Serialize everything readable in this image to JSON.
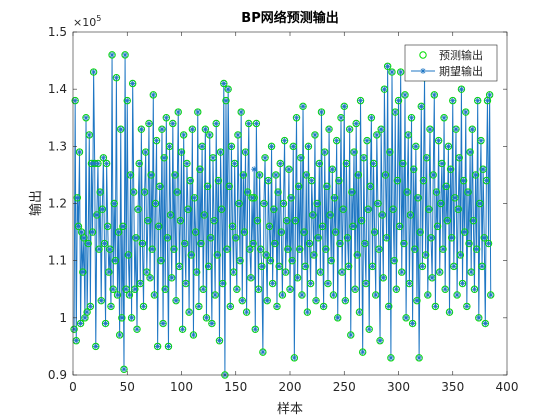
{
  "chart_data": {
    "type": "line",
    "title": "BP网络预测输出",
    "x_label": "样本",
    "y_label": "输出",
    "y_scale": {
      "base": "×10",
      "exponent": "5"
    },
    "xlim": [
      0,
      400
    ],
    "xticks": [
      0,
      50,
      100,
      150,
      200,
      250,
      300,
      350,
      400
    ],
    "ylim": [
      0.9,
      1.5
    ],
    "yticks": [
      0.9,
      1,
      1.1,
      1.2,
      1.3,
      1.4,
      1.5
    ],
    "legend": "upper right",
    "grid": false,
    "x": [
      1,
      2,
      3,
      4,
      5,
      6,
      7,
      8,
      9,
      10,
      11,
      12,
      13,
      14,
      15,
      16,
      17,
      18,
      19,
      20,
      21,
      22,
      23,
      24,
      25,
      26,
      27,
      28,
      29,
      30,
      31,
      32,
      33,
      34,
      35,
      36,
      37,
      38,
      39,
      40,
      41,
      42,
      43,
      44,
      45,
      46,
      47,
      48,
      49,
      50,
      51,
      52,
      53,
      54,
      55,
      56,
      57,
      58,
      59,
      60,
      61,
      62,
      63,
      64,
      65,
      66,
      67,
      68,
      69,
      70,
      71,
      72,
      73,
      74,
      75,
      76,
      77,
      78,
      79,
      80,
      81,
      82,
      83,
      84,
      85,
      86,
      87,
      88,
      89,
      90,
      91,
      92,
      93,
      94,
      95,
      96,
      97,
      98,
      99,
      100,
      101,
      102,
      103,
      104,
      105,
      106,
      107,
      108,
      109,
      110,
      111,
      112,
      113,
      114,
      115,
      116,
      117,
      118,
      119,
      120,
      121,
      122,
      123,
      124,
      125,
      126,
      127,
      128,
      129,
      130,
      131,
      132,
      133,
      134,
      135,
      136,
      137,
      138,
      139,
      140,
      141,
      142,
      143,
      144,
      145,
      146,
      147,
      148,
      149,
      150,
      151,
      152,
      153,
      154,
      155,
      156,
      157,
      158,
      159,
      160,
      161,
      162,
      163,
      164,
      165,
      166,
      167,
      168,
      169,
      170,
      171,
      172,
      173,
      174,
      175,
      176,
      177,
      178,
      179,
      180,
      181,
      182,
      183,
      184,
      185,
      186,
      187,
      188,
      189,
      190,
      191,
      192,
      193,
      194,
      195,
      196,
      197,
      198,
      199,
      200,
      201,
      202,
      203,
      204,
      205,
      206,
      207,
      208,
      209,
      210,
      211,
      212,
      213,
      214,
      215,
      216,
      217,
      218,
      219,
      220,
      221,
      222,
      223,
      224,
      225,
      226,
      227,
      228,
      229,
      230,
      231,
      232,
      233,
      234,
      235,
      236,
      237,
      238,
      239,
      240,
      241,
      242,
      243,
      244,
      245,
      246,
      247,
      248,
      249,
      250,
      251,
      252,
      253,
      254,
      255,
      256,
      257,
      258,
      259,
      260,
      261,
      262,
      263,
      264,
      265,
      266,
      267,
      268,
      269,
      270,
      271,
      272,
      273,
      274,
      275,
      276,
      277,
      278,
      279,
      280,
      281,
      282,
      283,
      284,
      285,
      286,
      287,
      288,
      289,
      290,
      291,
      292,
      293,
      294,
      295,
      296,
      297,
      298,
      299,
      300,
      301,
      302,
      303,
      304,
      305,
      306,
      307,
      308,
      309,
      310,
      311,
      312,
      313,
      314,
      315,
      316,
      317,
      318,
      319,
      320,
      321,
      322,
      323,
      324,
      325,
      326,
      327,
      328,
      329,
      330,
      331,
      332,
      333,
      334,
      335,
      336,
      337,
      338,
      339,
      340,
      341,
      342,
      343,
      344,
      345,
      346,
      347,
      348,
      349,
      350,
      351,
      352,
      353,
      354,
      355,
      356,
      357,
      358,
      359,
      360,
      361,
      362,
      363,
      364,
      365,
      366,
      367,
      368,
      369,
      370,
      371,
      372,
      373,
      374,
      375,
      376,
      377,
      378,
      379,
      380,
      381,
      382,
      383,
      384,
      385
    ],
    "series": [
      {
        "name": "预测输出",
        "color": "#00dd00",
        "marker": "circle",
        "line": false,
        "values": [
          0.98,
          1.38,
          0.96,
          1.21,
          1.16,
          1.29,
          0.99,
          1.15,
          1.08,
          1.14,
          1.0,
          1.35,
          1.01,
          1.13,
          1.32,
          1.02,
          1.27,
          1.15,
          1.43,
          1.27,
          0.95,
          1.18,
          1.27,
          1.12,
          1.22,
          1.03,
          1.19,
          1.28,
          1.13,
          0.99,
          1.27,
          1.16,
          1.08,
          1.12,
          1.02,
          1.46,
          1.05,
          1.2,
          1.1,
          1.42,
          1.04,
          1.15,
          0.97,
          1.33,
          1.0,
          1.16,
          0.91,
          1.46,
          1.05,
          1.38,
          1.11,
          1.04,
          1.25,
          1.0,
          1.41,
          1.22,
          1.05,
          1.14,
          0.98,
          1.19,
          1.27,
          1.06,
          1.33,
          1.13,
          1.02,
          1.22,
          1.29,
          1.08,
          1.17,
          1.34,
          1.07,
          1.25,
          1.12,
          1.39,
          1.04,
          1.2,
          1.31,
          0.95,
          1.16,
          1.23,
          1.1,
          1.33,
          0.99,
          1.28,
          1.05,
          1.35,
          1.14,
          0.95,
          1.3,
          1.18,
          1.07,
          1.34,
          1.12,
          1.25,
          1.03,
          1.22,
          1.36,
          1.09,
          1.17,
          1.29,
          0.98,
          1.32,
          1.13,
          1.06,
          1.27,
          1.19,
          1.01,
          1.24,
          1.11,
          1.33,
          0.97,
          1.21,
          1.15,
          1.08,
          1.36,
          1.02,
          1.26,
          1.13,
          1.3,
          1.05,
          1.18,
          1.33,
          1.0,
          1.23,
          1.09,
          1.32,
          1.14,
          0.99,
          1.28,
          1.17,
          1.04,
          1.34,
          1.11,
          1.24,
          0.96,
          1.29,
          1.19,
          1.06,
          1.41,
          0.9,
          1.38,
          1.12,
          1.4,
          1.23,
          1.02,
          1.3,
          1.16,
          1.08,
          1.27,
          1.14,
          1.05,
          1.32,
          1.2,
          1.1,
          1.36,
          1.03,
          1.25,
          1.15,
          1.29,
          1.01,
          1.22,
          1.34,
          1.12,
          1.07,
          1.21,
          1.13,
          1.21,
          0.98,
          1.34,
          1.17,
          1.05,
          1.25,
          1.12,
          1.09,
          0.94,
          1.2,
          1.28,
          1.11,
          1.03,
          1.24,
          1.16,
          1.1,
          1.3,
          1.06,
          1.19,
          1.13,
          1.25,
          1.02,
          1.22,
          1.09,
          1.27,
          1.15,
          1.04,
          1.2,
          1.31,
          1.08,
          1.17,
          1.12,
          1.26,
          1.05,
          1.21,
          1.1,
          1.3,
          0.93,
          1.17,
          1.35,
          1.07,
          1.23,
          1.12,
          1.28,
          1.04,
          1.37,
          1.15,
          1.09,
          1.25,
          1.01,
          1.3,
          1.13,
          1.06,
          1.24,
          1.18,
          1.11,
          1.32,
          1.03,
          1.2,
          1.14,
          1.27,
          1.08,
          1.36,
          1.16,
          1.02,
          1.29,
          1.12,
          1.23,
          1.06,
          1.33,
          1.18,
          1.1,
          1.26,
          1.04,
          1.21,
          1.15,
          1.31,
          1.0,
          1.24,
          1.13,
          1.35,
          1.08,
          1.19,
          1.37,
          1.03,
          1.27,
          1.14,
          1.09,
          1.33,
          0.97,
          1.22,
          1.16,
          1.29,
          1.05,
          1.34,
          1.11,
          1.25,
          1.01,
          1.38,
          1.17,
          0.94,
          1.28,
          1.13,
          1.06,
          1.31,
          1.19,
          0.98,
          1.23,
          1.35,
          1.09,
          1.27,
          1.15,
          1.04,
          1.32,
          1.2,
          1.12,
          0.96,
          1.33,
          1.18,
          1.07,
          1.4,
          1.25,
          1.14,
          1.44,
          1.02,
          1.29,
          0.93,
          1.43,
          1.19,
          1.1,
          1.36,
          1.05,
          1.24,
          1.38,
          1.16,
          1.43,
          1.08,
          1.27,
          1.13,
          1.39,
          1.0,
          1.22,
          1.32,
          1.06,
          1.18,
          1.35,
          0.99,
          1.26,
          1.12,
          1.3,
          1.03,
          1.21,
          0.93,
          1.15,
          1.37,
          1.09,
          1.24,
          1.42,
          1.11,
          1.28,
          1.04,
          1.19,
          1.33,
          1.14,
          1.07,
          1.25,
          1.39,
          1.02,
          1.22,
          1.16,
          1.31,
          1.08,
          1.2,
          1.27,
          1.12,
          1.35,
          1.05,
          1.23,
          1.17,
          1.3,
          1.01,
          1.26,
          1.14,
          1.38,
          1.09,
          1.21,
          1.33,
          1.04,
          1.19,
          1.28,
          1.11,
          1.4,
          1.06,
          1.24,
          1.15,
          1.36,
          1.02,
          1.22,
          1.13,
          1.29,
          1.08,
          1.33,
          1.17,
          1.05,
          1.25,
          1.12,
          1.38,
          1.0,
          1.2,
          1.31,
          1.09,
          1.26,
          1.14,
          0.99,
          1.24,
          1.38,
          1.13,
          1.39,
          1.04
        ]
      },
      {
        "name": "期望输出",
        "color": "#1f77c4",
        "marker": "asterisk",
        "line": true,
        "values": [
          0.98,
          1.38,
          0.96,
          1.21,
          1.16,
          1.29,
          0.99,
          1.15,
          1.08,
          1.14,
          1.0,
          1.35,
          1.01,
          1.13,
          1.32,
          1.02,
          1.27,
          1.15,
          1.43,
          1.27,
          0.95,
          1.18,
          1.27,
          1.12,
          1.22,
          1.03,
          1.19,
          1.28,
          1.13,
          0.99,
          1.27,
          1.16,
          1.08,
          1.12,
          1.02,
          1.46,
          1.05,
          1.2,
          1.1,
          1.42,
          1.04,
          1.15,
          0.97,
          1.33,
          1.0,
          1.16,
          0.91,
          1.46,
          1.05,
          1.38,
          1.11,
          1.04,
          1.25,
          1.0,
          1.41,
          1.22,
          1.05,
          1.14,
          0.98,
          1.19,
          1.27,
          1.06,
          1.33,
          1.13,
          1.02,
          1.22,
          1.29,
          1.08,
          1.17,
          1.34,
          1.07,
          1.25,
          1.12,
          1.39,
          1.04,
          1.2,
          1.31,
          0.95,
          1.16,
          1.23,
          1.1,
          1.33,
          0.99,
          1.28,
          1.05,
          1.35,
          1.14,
          0.95,
          1.3,
          1.18,
          1.07,
          1.34,
          1.12,
          1.25,
          1.03,
          1.22,
          1.36,
          1.09,
          1.17,
          1.29,
          0.98,
          1.32,
          1.13,
          1.06,
          1.27,
          1.19,
          1.01,
          1.24,
          1.11,
          1.33,
          0.97,
          1.21,
          1.15,
          1.08,
          1.36,
          1.02,
          1.26,
          1.13,
          1.3,
          1.05,
          1.18,
          1.33,
          1.0,
          1.23,
          1.09,
          1.32,
          1.14,
          0.99,
          1.28,
          1.17,
          1.04,
          1.34,
          1.11,
          1.24,
          0.96,
          1.29,
          1.19,
          1.06,
          1.41,
          0.9,
          1.38,
          1.12,
          1.4,
          1.23,
          1.02,
          1.3,
          1.16,
          1.08,
          1.27,
          1.14,
          1.05,
          1.32,
          1.2,
          1.1,
          1.36,
          1.03,
          1.25,
          1.15,
          1.29,
          1.01,
          1.22,
          1.34,
          1.12,
          1.07,
          1.21,
          1.13,
          1.26,
          0.98,
          1.34,
          1.17,
          1.05,
          1.25,
          1.12,
          1.09,
          0.94,
          1.2,
          1.28,
          1.11,
          1.03,
          1.24,
          1.16,
          1.1,
          1.3,
          1.06,
          1.19,
          1.13,
          1.25,
          1.02,
          1.22,
          1.09,
          1.27,
          1.15,
          1.04,
          1.2,
          1.31,
          1.08,
          1.17,
          1.12,
          1.26,
          1.05,
          1.21,
          1.1,
          1.3,
          0.93,
          1.17,
          1.35,
          1.07,
          1.23,
          1.12,
          1.28,
          1.04,
          1.37,
          1.15,
          1.09,
          1.25,
          1.01,
          1.3,
          1.13,
          1.06,
          1.24,
          1.18,
          1.11,
          1.32,
          1.03,
          1.2,
          1.14,
          1.27,
          1.08,
          1.36,
          1.16,
          1.02,
          1.29,
          1.12,
          1.23,
          1.06,
          1.33,
          1.18,
          1.1,
          1.26,
          1.04,
          1.21,
          1.15,
          1.31,
          1.0,
          1.24,
          1.13,
          1.35,
          1.08,
          1.19,
          1.37,
          1.03,
          1.27,
          1.14,
          1.09,
          1.33,
          0.97,
          1.22,
          1.16,
          1.29,
          1.05,
          1.34,
          1.11,
          1.25,
          1.01,
          1.38,
          1.17,
          0.94,
          1.28,
          1.13,
          1.06,
          1.31,
          1.19,
          0.98,
          1.23,
          1.35,
          1.09,
          1.27,
          1.15,
          1.04,
          1.32,
          1.2,
          1.12,
          0.96,
          1.33,
          1.18,
          1.07,
          1.4,
          1.25,
          1.14,
          1.44,
          1.02,
          1.29,
          0.93,
          1.43,
          1.19,
          1.1,
          1.36,
          1.05,
          1.24,
          1.38,
          1.16,
          1.43,
          1.08,
          1.27,
          1.13,
          1.39,
          1.0,
          1.22,
          1.32,
          1.06,
          1.18,
          1.35,
          0.99,
          1.26,
          1.12,
          1.3,
          1.03,
          1.21,
          0.93,
          1.15,
          1.37,
          1.09,
          1.24,
          1.42,
          1.11,
          1.28,
          1.04,
          1.19,
          1.33,
          1.14,
          1.07,
          1.25,
          1.39,
          1.02,
          1.22,
          1.16,
          1.31,
          1.08,
          1.2,
          1.27,
          1.12,
          1.35,
          1.05,
          1.23,
          1.17,
          1.3,
          1.01,
          1.26,
          1.14,
          1.38,
          1.09,
          1.21,
          1.33,
          1.04,
          1.19,
          1.28,
          1.11,
          1.4,
          1.06,
          1.24,
          1.15,
          1.36,
          1.02,
          1.22,
          1.13,
          1.29,
          1.08,
          1.33,
          1.17,
          1.05,
          1.25,
          1.12,
          1.38,
          1.0,
          1.2,
          1.31,
          1.09,
          1.26,
          1.14,
          0.99,
          1.24,
          1.38,
          1.13,
          1.39,
          1.04
        ]
      }
    ]
  }
}
